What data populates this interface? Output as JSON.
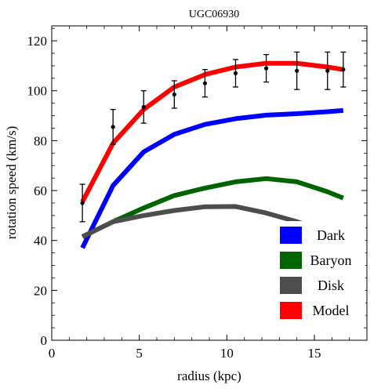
{
  "chart_data": {
    "type": "line",
    "title": "UGC06930",
    "xlabel": "radius (kpc)",
    "ylabel": "rotation speed (km/s)",
    "xlim": [
      0,
      18
    ],
    "ylim": [
      0,
      126
    ],
    "xticks": [
      0,
      5,
      10,
      15
    ],
    "yticks": [
      0,
      20,
      40,
      60,
      80,
      100,
      120
    ],
    "grid": false,
    "legend_position": "bottom-right",
    "x": [
      1.75,
      3.5,
      5.25,
      7.0,
      8.75,
      10.5,
      12.25,
      14.0,
      15.75,
      16.65
    ],
    "series": [
      {
        "name": "Dark",
        "color": "#0000ff",
        "values": [
          37,
          62,
          75.5,
          82.5,
          86.5,
          88.8,
          90.2,
          90.8,
          91.6,
          92.1
        ]
      },
      {
        "name": "Baryon",
        "color": "#006400",
        "values": [
          41.5,
          47.5,
          53,
          58,
          61,
          63.5,
          64.8,
          63.5,
          59.5,
          57
        ]
      },
      {
        "name": "Disk",
        "color": "#4d4d4d",
        "values": [
          41.5,
          47.5,
          50,
          52,
          53.5,
          53.6,
          51,
          47.5,
          43.5,
          41
        ]
      },
      {
        "name": "Model",
        "color": "#ff0000",
        "values": [
          55.5,
          79,
          92.5,
          101.5,
          106.5,
          109.5,
          111,
          111,
          109.5,
          108.5
        ]
      }
    ],
    "observed": {
      "x": [
        1.75,
        3.5,
        5.25,
        7.0,
        8.75,
        10.5,
        12.25,
        14.0,
        15.75,
        16.65
      ],
      "y": [
        55,
        85.5,
        93.5,
        98.5,
        103,
        107,
        109,
        108,
        108,
        108.5
      ],
      "error": [
        7.5,
        7,
        6.5,
        5.5,
        5.5,
        5.5,
        5.5,
        7.5,
        7.5,
        7
      ]
    }
  }
}
